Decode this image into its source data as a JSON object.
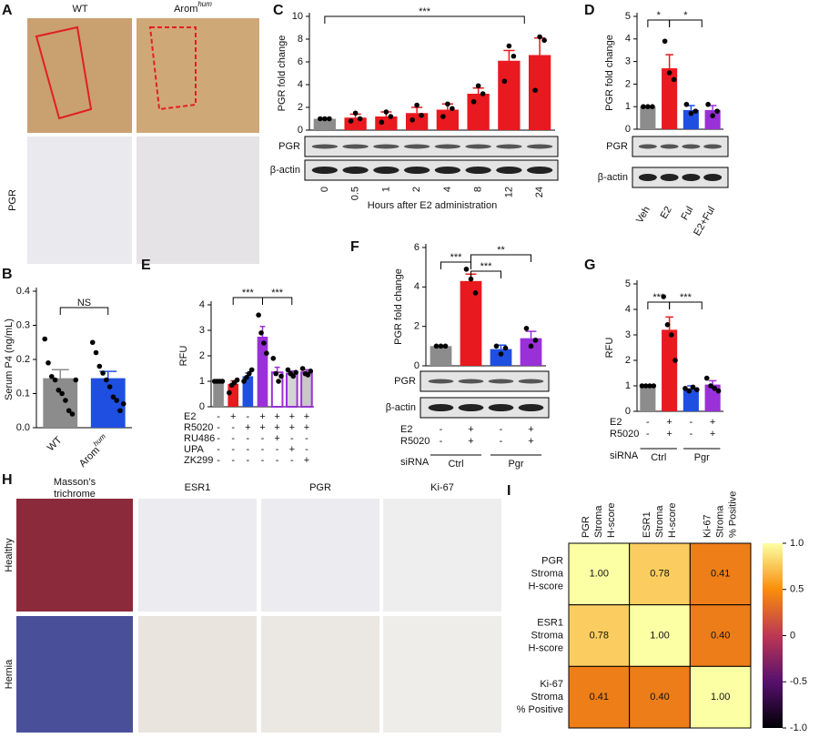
{
  "panels": [
    "A",
    "B",
    "C",
    "D",
    "E",
    "F",
    "G",
    "H",
    "I"
  ],
  "figure_a": {
    "columns": [
      "WT",
      "Arom"
    ],
    "column_superscripts": [
      null,
      "hum"
    ],
    "row_label": "PGR"
  },
  "figure_h": {
    "columns": [
      [
        "Masson’s",
        "trichrome"
      ],
      [
        "ESR1"
      ],
      [
        "PGR"
      ],
      [
        "Ki-67"
      ]
    ],
    "rows": [
      "Healthy",
      "Hernia"
    ]
  },
  "chart_data": [
    {
      "type": "bar",
      "ylabel": "Serum P4 (ng/mL)",
      "categories": [
        "WT",
        "Arom"
      ],
      "category_superscripts": [
        null,
        "hum"
      ],
      "values": [
        0.145,
        0.145
      ],
      "errors": [
        0.025,
        0.02
      ],
      "colors": [
        "#8c8c8c",
        "#1f4fe0"
      ],
      "points": [
        [
          0.26,
          0.19,
          0.15,
          0.14,
          0.11,
          0.1,
          0.08,
          0.05,
          0.04,
          0.14
        ],
        [
          0.25,
          0.22,
          0.18,
          0.16,
          0.14,
          0.12,
          0.09,
          0.08,
          0.05,
          0.07
        ]
      ],
      "ylim": [
        0,
        0.4
      ],
      "yticks": [
        {
          "value": 0,
          "label": "0.0"
        },
        0.1,
        0.2,
        0.3,
        0.4
      ],
      "annotations": [
        "NS"
      ]
    },
    {
      "type": "bar",
      "ylabel": "PGR fold change",
      "xlabel": "Hours after E2 administration",
      "categories": [
        "0",
        "0.5",
        "1",
        "2",
        "4",
        "8",
        "12",
        "24"
      ],
      "values": [
        1,
        1.1,
        1.2,
        1.5,
        1.8,
        3.2,
        6.1,
        6.6
      ],
      "errors": [
        0.05,
        0.3,
        0.4,
        0.5,
        0.5,
        0.5,
        0.9,
        1.5
      ],
      "colors": [
        "#8c8c8c",
        "#e8191f",
        "#e8191f",
        "#e8191f",
        "#e8191f",
        "#e8191f",
        "#e8191f",
        "#e8191f"
      ],
      "points": [
        [
          1,
          1,
          1
        ],
        [
          0.8,
          1.5,
          1
        ],
        [
          0.7,
          1.6,
          1.2
        ],
        [
          0.9,
          2.2,
          1.3
        ],
        [
          1.2,
          2.3,
          1.9
        ],
        [
          2.5,
          3.9,
          3.2
        ],
        [
          4.3,
          7.4,
          6.5
        ],
        [
          3.5,
          8.2,
          7.9
        ]
      ],
      "ylim": [
        0,
        10
      ],
      "yticks": [
        0,
        2,
        4,
        6,
        8,
        10
      ],
      "annotations": [
        "***"
      ],
      "blots": [
        "PGR",
        "β-actin"
      ]
    },
    {
      "type": "bar",
      "ylabel": "PGR fold change",
      "categories": [
        "Veh",
        "E2",
        "Ful",
        "E2+Ful"
      ],
      "values": [
        1,
        2.7,
        0.85,
        0.85
      ],
      "errors": [
        0.02,
        0.6,
        0.2,
        0.2
      ],
      "colors": [
        "#8c8c8c",
        "#e8191f",
        "#1f4fe0",
        "#9a30d8"
      ],
      "points": [
        [
          1,
          1,
          1
        ],
        [
          3.9,
          2.5,
          2.2
        ],
        [
          1.1,
          0.7,
          0.8
        ],
        [
          1.1,
          0.6,
          0.8
        ]
      ],
      "ylim": [
        0,
        5
      ],
      "yticks": [
        0,
        1,
        2,
        3,
        4,
        5
      ],
      "annotations": [
        "*",
        "*"
      ],
      "blots": [
        "PGR",
        "β-actin"
      ]
    },
    {
      "type": "bar",
      "ylabel": "RFU",
      "values": [
        1,
        0.9,
        1.2,
        2.75,
        1.35,
        1.3,
        1.35
      ],
      "errors": [
        0.02,
        0.12,
        0.12,
        0.4,
        0.2,
        0.1,
        0.1
      ],
      "colors": [
        "#8c8c8c",
        "#e8191f",
        "#1f4fe0",
        "#9a30d8",
        "#ffffff",
        "#d4d4d4",
        "#c8c8c8"
      ],
      "edge_colors": [
        null,
        null,
        null,
        null,
        "#9a30d8",
        "#9a30d8",
        "#9a30d8"
      ],
      "points": [
        [
          1,
          1,
          1,
          1
        ],
        [
          0.55,
          0.85,
          0.95,
          1.05
        ],
        [
          1,
          1.15,
          1.3,
          1.45
        ],
        [
          3.6,
          2.9,
          2.5,
          2.1
        ],
        [
          1.9,
          1.3,
          1,
          1.2
        ],
        [
          1.45,
          1.3,
          1.2,
          1.35
        ],
        [
          1.5,
          1.3,
          1.25,
          1.4
        ]
      ],
      "ylim": [
        0,
        4
      ],
      "yticks": [
        0,
        1,
        2,
        3,
        4
      ],
      "annotations": [
        "***",
        "***"
      ],
      "treatments": [
        {
          "name": "E2",
          "values": [
            "-",
            "+",
            "-",
            "+",
            "+",
            "+",
            "+"
          ]
        },
        {
          "name": "R5020",
          "values": [
            "-",
            "-",
            "+",
            "+",
            "+",
            "+",
            "+"
          ]
        },
        {
          "name": "RU486",
          "values": [
            "-",
            "-",
            "-",
            "-",
            "+",
            "-",
            "-"
          ]
        },
        {
          "name": "UPA",
          "values": [
            "-",
            "-",
            "-",
            "-",
            "-",
            "+",
            "-"
          ]
        },
        {
          "name": "ZK299",
          "values": [
            "-",
            "-",
            "-",
            "-",
            "-",
            "-",
            "+"
          ]
        }
      ]
    },
    {
      "type": "bar",
      "ylabel": "PGR fold change",
      "values": [
        1,
        4.3,
        0.85,
        1.4
      ],
      "errors": [
        0.02,
        0.35,
        0.2,
        0.35
      ],
      "colors": [
        "#8c8c8c",
        "#e8191f",
        "#1f4fe0",
        "#9a30d8"
      ],
      "points": [
        [
          1,
          1,
          1
        ],
        [
          4.9,
          4.4,
          3.7
        ],
        [
          1,
          0.6,
          0.9
        ],
        [
          1.9,
          1,
          1.3
        ]
      ],
      "ylim": [
        0,
        6
      ],
      "yticks": [
        0,
        2,
        4,
        6
      ],
      "annotations": [
        "***",
        "***",
        "**"
      ],
      "blots": [
        "PGR",
        "β-actin"
      ],
      "treatments": [
        {
          "name": "E2",
          "values": [
            "-",
            "+",
            "-",
            "+"
          ]
        },
        {
          "name": "R5020",
          "values": [
            "-",
            "+",
            "-",
            "+"
          ]
        }
      ],
      "group_label": "siRNA",
      "groups": [
        "Ctrl",
        "Pgr"
      ]
    },
    {
      "type": "bar",
      "ylabel": "RFU",
      "values": [
        1,
        3.2,
        0.9,
        1.05
      ],
      "errors": [
        0.02,
        0.5,
        0.1,
        0.15
      ],
      "colors": [
        "#8c8c8c",
        "#e8191f",
        "#1f4fe0",
        "#9a30d8"
      ],
      "points": [
        [
          1,
          1,
          1,
          1
        ],
        [
          4.5,
          3.4,
          3,
          2
        ],
        [
          0.9,
          0.8,
          0.95,
          0.85
        ],
        [
          1.3,
          1,
          0.9,
          0.8
        ]
      ],
      "ylim": [
        0,
        5
      ],
      "yticks": [
        0,
        1,
        2,
        3,
        4,
        5
      ],
      "annotations": [
        "***",
        "***"
      ],
      "treatments": [
        {
          "name": "E2",
          "values": [
            "-",
            "+",
            "-",
            "+"
          ]
        },
        {
          "name": "R5020",
          "values": [
            "-",
            "+",
            "-",
            "+"
          ]
        }
      ],
      "group_label": "siRNA",
      "groups": [
        "Ctrl",
        "Pgr"
      ]
    },
    {
      "type": "heatmap",
      "row_labels": [
        [
          "PGR",
          "Stroma",
          "H-score"
        ],
        [
          "ESR1",
          "Stroma",
          "H-score"
        ],
        [
          "Ki-67",
          "Stroma",
          "% Positive"
        ]
      ],
      "col_labels": [
        [
          "PGR",
          "Stroma",
          "H-score"
        ],
        [
          "ESR1",
          "Stroma",
          "H-score"
        ],
        [
          "Ki-67",
          "Stroma",
          "% Positive"
        ]
      ],
      "values": [
        [
          1,
          0.78,
          0.41
        ],
        [
          0.78,
          1,
          0.4
        ],
        [
          0.41,
          0.4,
          1
        ]
      ],
      "value_labels": [
        [
          "1.00",
          "0.78",
          "0.41"
        ],
        [
          "0.78",
          "1.00",
          "0.40"
        ],
        [
          "0.41",
          "0.40",
          "1.00"
        ]
      ],
      "colormap": "inferno",
      "zlim": [
        -1,
        1
      ],
      "zticks": [
        {
          "value": 1,
          "label": "1.0"
        },
        0.5,
        0,
        -0.5,
        {
          "value": -1,
          "label": "-1.0"
        }
      ]
    }
  ]
}
